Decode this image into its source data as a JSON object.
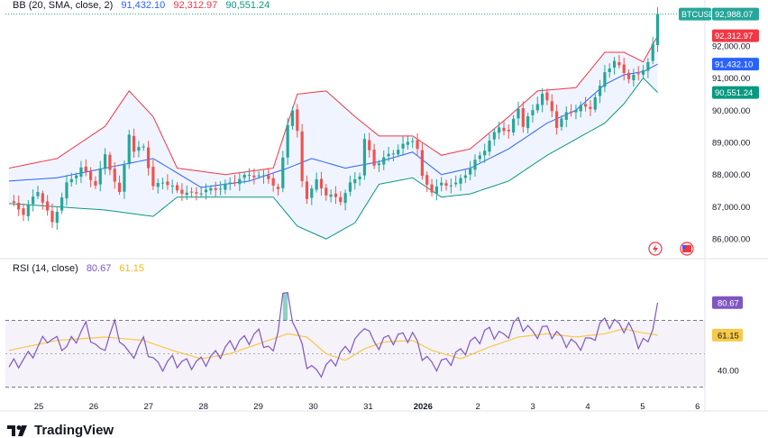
{
  "legend": {
    "bb_label": "BB (20, SMA, close, 2)",
    "bb_basis": "91,432.10",
    "bb_upper": "92,312.97",
    "bb_lower": "90,551.24",
    "rsi_label": "RSI (14, close)",
    "rsi_value": "80.67",
    "rsi_ma": "61.15"
  },
  "colors": {
    "up": "#26a69a",
    "down": "#ef5350",
    "basis": "#2962ff",
    "upper": "#f23645",
    "lower": "#089981",
    "rsi": "#7e57c2",
    "rsi_ma": "#f7c948"
  },
  "chart_data": [
    {
      "type": "candlestick",
      "title": "BTCUSD",
      "symbol": "BTCUSD",
      "overlay": "Bollinger Bands (20, SMA, close, 2)",
      "ylim": [
        85500,
        93200
      ],
      "y_ticks": [
        "86,000.00",
        "87,000.00",
        "88,000.00",
        "89,000.00",
        "90,000.00",
        "91,000.00",
        "92,000.00"
      ],
      "x_ticks": [
        "25",
        "26",
        "27",
        "28",
        "29",
        "30",
        "31",
        "2026",
        "2",
        "3",
        "4",
        "5",
        "6"
      ],
      "last_price": 92988.07,
      "price_labels": [
        {
          "text": "BTCUSD",
          "value": "92,988.07",
          "kind": "symbol"
        },
        {
          "text": "",
          "value": "92,312.97",
          "kind": "upper"
        },
        {
          "text": "",
          "value": "91,432.10",
          "kind": "basis"
        },
        {
          "text": "",
          "value": "90,551.24",
          "kind": "lower"
        }
      ],
      "price_path": [
        [
          0,
          87200
        ],
        [
          3,
          86800
        ],
        [
          6,
          87500
        ],
        [
          9,
          86500
        ],
        [
          12,
          87700
        ],
        [
          15,
          88200
        ],
        [
          18,
          87700
        ],
        [
          20,
          88600
        ],
        [
          23,
          87400
        ],
        [
          24,
          88300
        ],
        [
          25,
          89300
        ],
        [
          26,
          88700
        ],
        [
          28,
          88900
        ],
        [
          30,
          87600
        ],
        [
          32,
          87800
        ],
        [
          35,
          87500
        ],
        [
          38,
          87400
        ],
        [
          41,
          87500
        ],
        [
          44,
          87600
        ],
        [
          47,
          87800
        ],
        [
          50,
          88000
        ],
        [
          54,
          87900
        ],
        [
          56,
          87500
        ],
        [
          57,
          88500
        ],
        [
          58,
          89600
        ],
        [
          59,
          90000
        ],
        [
          60,
          89300
        ],
        [
          61,
          87800
        ],
        [
          62,
          87300
        ],
        [
          64,
          87800
        ],
        [
          66,
          87400
        ],
        [
          69,
          87200
        ],
        [
          71,
          87700
        ],
        [
          73,
          88000
        ],
        [
          74,
          89100
        ],
        [
          76,
          88300
        ],
        [
          79,
          88600
        ],
        [
          82,
          88900
        ],
        [
          84,
          89100
        ],
        [
          85,
          88800
        ],
        [
          86,
          87900
        ],
        [
          88,
          87500
        ],
        [
          90,
          87700
        ],
        [
          93,
          87700
        ],
        [
          96,
          88200
        ],
        [
          99,
          88800
        ],
        [
          102,
          89500
        ],
        [
          104,
          89300
        ],
        [
          106,
          90100
        ],
        [
          107,
          89500
        ],
        [
          109,
          90000
        ],
        [
          111,
          90500
        ],
        [
          113,
          90000
        ],
        [
          114,
          89500
        ],
        [
          116,
          89900
        ],
        [
          119,
          90100
        ],
        [
          121,
          90100
        ],
        [
          123,
          90700
        ],
        [
          124,
          91200
        ],
        [
          126,
          91500
        ],
        [
          128,
          91200
        ],
        [
          129,
          91000
        ],
        [
          131,
          91100
        ],
        [
          132,
          91300
        ],
        [
          133,
          91500
        ],
        [
          134,
          92000
        ],
        [
          135,
          93000
        ]
      ],
      "bollinger": {
        "basis": [
          [
            0,
            87800
          ],
          [
            10,
            87900
          ],
          [
            20,
            88200
          ],
          [
            30,
            88500
          ],
          [
            40,
            87600
          ],
          [
            50,
            87800
          ],
          [
            58,
            88200
          ],
          [
            63,
            88500
          ],
          [
            70,
            88200
          ],
          [
            77,
            88400
          ],
          [
            84,
            88700
          ],
          [
            90,
            88000
          ],
          [
            96,
            88200
          ],
          [
            104,
            88800
          ],
          [
            112,
            89600
          ],
          [
            118,
            90000
          ],
          [
            124,
            90800
          ],
          [
            128,
            91100
          ],
          [
            132,
            91200
          ],
          [
            135,
            91432.1
          ]
        ],
        "upper": [
          [
            0,
            88200
          ],
          [
            10,
            88500
          ],
          [
            20,
            89500
          ],
          [
            25,
            90600
          ],
          [
            30,
            89800
          ],
          [
            35,
            88200
          ],
          [
            45,
            88000
          ],
          [
            55,
            88200
          ],
          [
            60,
            90500
          ],
          [
            66,
            90600
          ],
          [
            72,
            89800
          ],
          [
            77,
            89200
          ],
          [
            84,
            89200
          ],
          [
            90,
            88600
          ],
          [
            96,
            88800
          ],
          [
            104,
            89800
          ],
          [
            110,
            90600
          ],
          [
            118,
            90700
          ],
          [
            124,
            91800
          ],
          [
            128,
            91800
          ],
          [
            132,
            91500
          ],
          [
            135,
            92312.97
          ]
        ],
        "lower": [
          [
            0,
            87100
          ],
          [
            10,
            87000
          ],
          [
            20,
            86900
          ],
          [
            25,
            86800
          ],
          [
            30,
            86700
          ],
          [
            35,
            87300
          ],
          [
            45,
            87300
          ],
          [
            55,
            87300
          ],
          [
            60,
            86400
          ],
          [
            66,
            86000
          ],
          [
            72,
            86500
          ],
          [
            77,
            87700
          ],
          [
            84,
            87900
          ],
          [
            90,
            87300
          ],
          [
            96,
            87400
          ],
          [
            104,
            87800
          ],
          [
            112,
            88600
          ],
          [
            118,
            89100
          ],
          [
            124,
            89600
          ],
          [
            128,
            90200
          ],
          [
            132,
            91000
          ],
          [
            135,
            90551.24
          ]
        ]
      }
    },
    {
      "type": "line",
      "title": "RSI (14, close)",
      "ylim": [
        20,
        100
      ],
      "y_ticks": [
        "40.00"
      ],
      "band": [
        30,
        70
      ],
      "series": [
        {
          "name": "RSI",
          "values": [
            [
              0,
              42
            ],
            [
              4,
              48
            ],
            [
              8,
              60
            ],
            [
              12,
              54
            ],
            [
              16,
              66
            ],
            [
              19,
              50
            ],
            [
              22,
              67
            ],
            [
              25,
              48
            ],
            [
              28,
              57
            ],
            [
              31,
              42
            ],
            [
              34,
              46
            ],
            [
              37,
              44
            ],
            [
              40,
              45
            ],
            [
              43,
              49
            ],
            [
              46,
              55
            ],
            [
              49,
              58
            ],
            [
              52,
              62
            ],
            [
              55,
              49
            ],
            [
              57,
              85
            ],
            [
              58,
              84
            ],
            [
              60,
              62
            ],
            [
              62,
              45
            ],
            [
              64,
              38
            ],
            [
              67,
              44
            ],
            [
              70,
              52
            ],
            [
              73,
              60
            ],
            [
              74,
              69
            ],
            [
              76,
              55
            ],
            [
              78,
              58
            ],
            [
              81,
              60
            ],
            [
              84,
              61
            ],
            [
              86,
              50
            ],
            [
              88,
              43
            ],
            [
              91,
              45
            ],
            [
              94,
              51
            ],
            [
              97,
              58
            ],
            [
              100,
              64
            ],
            [
              103,
              60
            ],
            [
              106,
              70
            ],
            [
              109,
              62
            ],
            [
              112,
              65
            ],
            [
              115,
              59
            ],
            [
              118,
              55
            ],
            [
              121,
              58
            ],
            [
              124,
              70
            ],
            [
              127,
              67
            ],
            [
              129,
              66
            ],
            [
              131,
              57
            ],
            [
              133,
              56
            ],
            [
              135,
              80.67
            ]
          ]
        },
        {
          "name": "RSI-based MA",
          "values": [
            [
              0,
              52
            ],
            [
              10,
              58
            ],
            [
              20,
              60
            ],
            [
              28,
              58
            ],
            [
              34,
              52
            ],
            [
              40,
              47
            ],
            [
              46,
              50
            ],
            [
              52,
              56
            ],
            [
              58,
              62
            ],
            [
              62,
              60
            ],
            [
              66,
              50
            ],
            [
              70,
              46
            ],
            [
              74,
              53
            ],
            [
              78,
              57
            ],
            [
              84,
              58
            ],
            [
              88,
              52
            ],
            [
              94,
              47
            ],
            [
              100,
              54
            ],
            [
              106,
              60
            ],
            [
              112,
              62
            ],
            [
              118,
              60
            ],
            [
              124,
              62
            ],
            [
              128,
              65
            ],
            [
              131,
              63
            ],
            [
              135,
              61.15
            ]
          ]
        }
      ],
      "price_labels": [
        {
          "value": "80.67",
          "kind": "rsi"
        },
        {
          "value": "61.15",
          "kind": "rsi_ma"
        }
      ]
    }
  ],
  "branding": {
    "logo_text": "TradingView"
  }
}
